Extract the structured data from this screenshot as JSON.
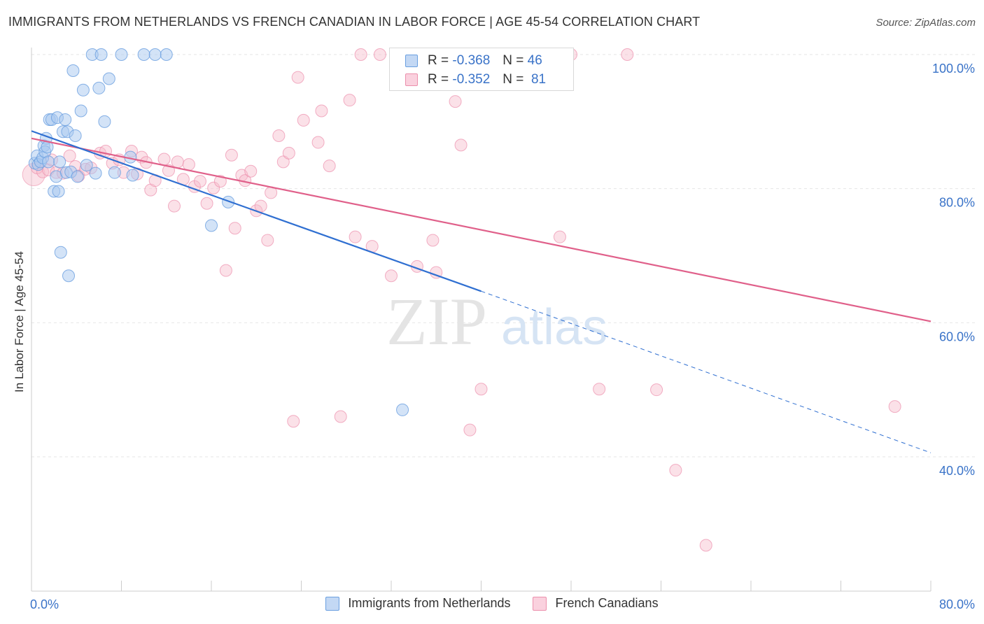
{
  "header": {
    "title": "IMMIGRANTS FROM NETHERLANDS VS FRENCH CANADIAN IN LABOR FORCE | AGE 45-54 CORRELATION CHART",
    "source": "Source: ZipAtlas.com"
  },
  "watermark": {
    "zip": "ZIP",
    "atlas": "atlas"
  },
  "legend": {
    "rows": [
      {
        "r_label": "R =",
        "r_value": "-0.368",
        "n_label": "N =",
        "n_value": "46"
      },
      {
        "r_label": "R =",
        "r_value": "-0.352",
        "n_label": "N =",
        "n_value": "81"
      }
    ]
  },
  "bottom_legend": {
    "series1": "Immigrants from Netherlands",
    "series2": "French Canadians"
  },
  "colors": {
    "blue_fill": "#a8c8f0",
    "blue_stroke": "#6a9fe0",
    "blue_line": "#2f6fd1",
    "pink_fill": "#f7bccd",
    "pink_stroke": "#ec8fac",
    "pink_line": "#e0608a",
    "tick_text": "#3a73c8",
    "grid": "#e6e6e6"
  },
  "chart_data": {
    "type": "scatter",
    "title": "IMMIGRANTS FROM NETHERLANDS VS FRENCH CANADIAN IN LABOR FORCE | AGE 45-54 CORRELATION CHART",
    "xlabel": "",
    "ylabel": "In Labor Force | Age 45-54",
    "xlim": [
      0,
      80
    ],
    "ylim": [
      18,
      101
    ],
    "x_tick_labels": [
      "0.0%",
      "80.0%"
    ],
    "y_ticks": [
      40,
      60,
      80,
      100
    ],
    "y_tick_labels": [
      "40.0%",
      "60.0%",
      "80.0%",
      "100.0%"
    ],
    "grid": true,
    "legend_position": "top-center",
    "series": [
      {
        "name": "Immigrants from Netherlands",
        "R": -0.368,
        "N": 46,
        "trend": {
          "x": [
            0,
            40
          ],
          "y": [
            88.6,
            64.7
          ]
        },
        "trend_extension": {
          "x": [
            40,
            80
          ],
          "y": [
            64.7,
            40.6
          ]
        },
        "points": [
          [
            0.3,
            83.8
          ],
          [
            0.5,
            84.9
          ],
          [
            0.6,
            83.6
          ],
          [
            0.8,
            84.0
          ],
          [
            1.0,
            84.6
          ],
          [
            1.1,
            86.4
          ],
          [
            1.2,
            85.5
          ],
          [
            1.3,
            87.5
          ],
          [
            1.4,
            86.2
          ],
          [
            1.5,
            84.0
          ],
          [
            1.6,
            90.3
          ],
          [
            1.8,
            90.3
          ],
          [
            2.0,
            79.6
          ],
          [
            2.2,
            81.8
          ],
          [
            2.3,
            90.6
          ],
          [
            2.4,
            79.6
          ],
          [
            2.5,
            84.0
          ],
          [
            2.6,
            70.5
          ],
          [
            2.8,
            88.5
          ],
          [
            3.0,
            90.3
          ],
          [
            3.1,
            82.4
          ],
          [
            3.2,
            88.5
          ],
          [
            3.3,
            67.0
          ],
          [
            3.5,
            82.5
          ],
          [
            3.7,
            97.6
          ],
          [
            3.9,
            87.9
          ],
          [
            4.1,
            81.8
          ],
          [
            4.4,
            91.6
          ],
          [
            4.6,
            94.7
          ],
          [
            4.9,
            83.5
          ],
          [
            5.4,
            100.0
          ],
          [
            5.7,
            82.3
          ],
          [
            6.0,
            95.0
          ],
          [
            6.2,
            100.0
          ],
          [
            6.5,
            90.0
          ],
          [
            6.9,
            96.4
          ],
          [
            7.4,
            82.4
          ],
          [
            8.0,
            100.0
          ],
          [
            8.8,
            84.7
          ],
          [
            9.0,
            82.0
          ],
          [
            10.0,
            100.0
          ],
          [
            11.0,
            100.0
          ],
          [
            12.0,
            100.0
          ],
          [
            16.0,
            74.5
          ],
          [
            17.5,
            78.0
          ],
          [
            33.0,
            47.0
          ]
        ]
      },
      {
        "name": "French Canadians",
        "R": -0.352,
        "N": 81,
        "trend": {
          "x": [
            0,
            80
          ],
          "y": [
            87.5,
            60.2
          ]
        },
        "points": [
          [
            0.2,
            82.1
          ],
          [
            0.5,
            83.1
          ],
          [
            1.0,
            82.5
          ],
          [
            1.5,
            82.8
          ],
          [
            2.2,
            82.4
          ],
          [
            2.8,
            82.3
          ],
          [
            3.4,
            84.9
          ],
          [
            3.9,
            83.3
          ],
          [
            4.2,
            81.9
          ],
          [
            4.8,
            82.9
          ],
          [
            5.3,
            83.1
          ],
          [
            6.1,
            85.3
          ],
          [
            6.6,
            85.6
          ],
          [
            7.2,
            83.8
          ],
          [
            7.8,
            84.3
          ],
          [
            8.2,
            82.4
          ],
          [
            8.9,
            85.6
          ],
          [
            9.4,
            82.2
          ],
          [
            9.8,
            84.7
          ],
          [
            10.2,
            83.9
          ],
          [
            10.6,
            79.8
          ],
          [
            11.0,
            81.2
          ],
          [
            11.8,
            84.4
          ],
          [
            12.2,
            82.7
          ],
          [
            12.7,
            77.4
          ],
          [
            13.0,
            84.0
          ],
          [
            13.5,
            81.4
          ],
          [
            14.0,
            83.6
          ],
          [
            14.5,
            80.3
          ],
          [
            15.0,
            81.1
          ],
          [
            15.6,
            77.8
          ],
          [
            16.2,
            80.1
          ],
          [
            16.8,
            81.1
          ],
          [
            17.3,
            67.8
          ],
          [
            17.8,
            85.0
          ],
          [
            18.1,
            74.1
          ],
          [
            18.7,
            82.0
          ],
          [
            19.0,
            81.2
          ],
          [
            19.5,
            82.6
          ],
          [
            20.0,
            76.7
          ],
          [
            20.4,
            77.4
          ],
          [
            21.0,
            72.3
          ],
          [
            21.3,
            79.4
          ],
          [
            22.0,
            87.9
          ],
          [
            22.4,
            84.0
          ],
          [
            22.9,
            85.3
          ],
          [
            23.3,
            45.3
          ],
          [
            23.7,
            96.6
          ],
          [
            24.2,
            90.2
          ],
          [
            25.5,
            86.9
          ],
          [
            25.8,
            91.6
          ],
          [
            26.5,
            83.4
          ],
          [
            27.5,
            46.0
          ],
          [
            28.3,
            93.2
          ],
          [
            28.8,
            72.8
          ],
          [
            29.3,
            100.0
          ],
          [
            30.3,
            71.4
          ],
          [
            31.0,
            100.0
          ],
          [
            32.0,
            67.0
          ],
          [
            32.8,
            100.0
          ],
          [
            33.5,
            100.0
          ],
          [
            34.3,
            68.4
          ],
          [
            35.0,
            100.0
          ],
          [
            35.7,
            72.3
          ],
          [
            36.0,
            67.5
          ],
          [
            37.0,
            100.0
          ],
          [
            37.7,
            93.0
          ],
          [
            38.2,
            86.5
          ],
          [
            39.0,
            44.0
          ],
          [
            40.0,
            50.1
          ],
          [
            43.5,
            100.0
          ],
          [
            46.0,
            100.0
          ],
          [
            47.0,
            72.8
          ],
          [
            48.0,
            100.0
          ],
          [
            50.5,
            50.1
          ],
          [
            53.0,
            100.0
          ],
          [
            55.6,
            50.0
          ],
          [
            57.3,
            38.0
          ],
          [
            60.0,
            26.8
          ],
          [
            76.8,
            47.5
          ],
          [
            1.8,
            84.3
          ]
        ]
      }
    ]
  }
}
